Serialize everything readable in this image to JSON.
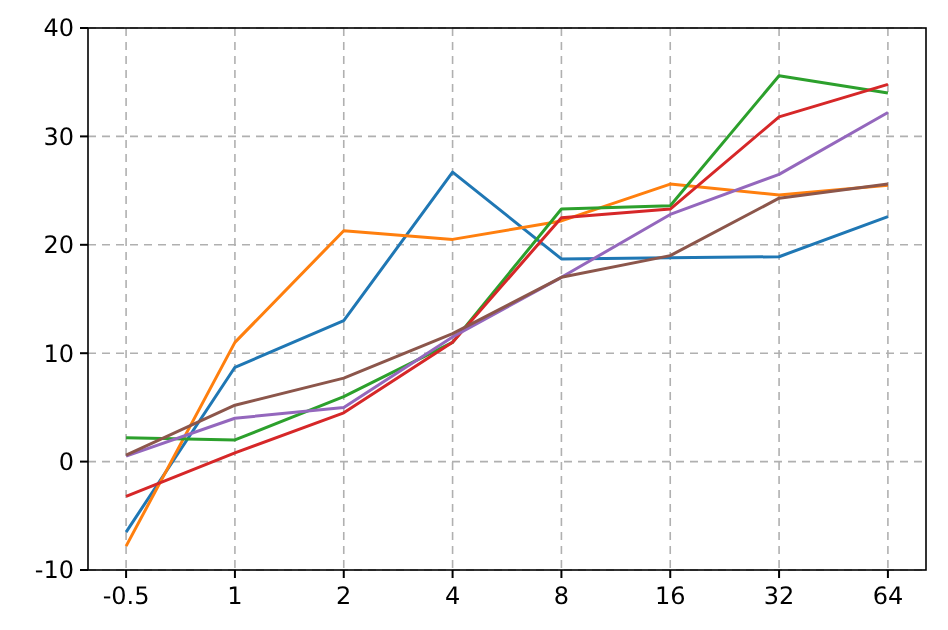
{
  "chart_data": {
    "type": "line",
    "categories": [
      "-0.5",
      "1",
      "2",
      "4",
      "8",
      "16",
      "32",
      "64"
    ],
    "series": [
      {
        "color": "#1f77b4",
        "values": [
          -6.5,
          8.7,
          13,
          26.7,
          18.7,
          18.8,
          18.9,
          22.6
        ]
      },
      {
        "color": "#ff7f0e",
        "values": [
          -7.8,
          11,
          21.3,
          20.5,
          22.2,
          25.6,
          24.6,
          25.5
        ]
      },
      {
        "color": "#2ca02c",
        "values": [
          2.2,
          2,
          6,
          11,
          23.3,
          23.6,
          35.6,
          34
        ]
      },
      {
        "color": "#d62728",
        "values": [
          -3.2,
          0.8,
          4.5,
          11,
          22.5,
          23.3,
          31.8,
          34.8
        ]
      },
      {
        "color": "#9467bd",
        "values": [
          0.5,
          4,
          5,
          11.5,
          17,
          22.8,
          26.5,
          32.2
        ]
      },
      {
        "color": "#8c564b",
        "values": [
          0.6,
          5.2,
          7.7,
          11.8,
          17,
          19,
          24.3,
          25.6
        ]
      }
    ],
    "ylim": [
      -10,
      40
    ],
    "yticks": [
      -10,
      0,
      10,
      20,
      30,
      40
    ],
    "grid": true,
    "line_style": "solid",
    "marker": "none"
  }
}
